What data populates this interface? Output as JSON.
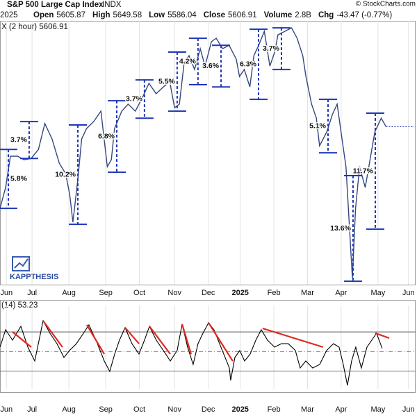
{
  "header": {
    "title": "S&P 500 Large Cap Index",
    "symbol": "INDX",
    "date": "2025",
    "credit": "© StockCharts.com",
    "stats": [
      {
        "label": "Open",
        "value": "5605.87"
      },
      {
        "label": "High",
        "value": "5649.58"
      },
      {
        "label": "Low",
        "value": "5586.04"
      },
      {
        "label": "Close",
        "value": "5606.91"
      },
      {
        "label": "Volume",
        "value": "2.8B"
      },
      {
        "label": "Chg",
        "value": "-43.47 (-0.77%)"
      }
    ],
    "watermark": "KAPPTHESIS"
  },
  "chart_data": [
    {
      "type": "line",
      "xlim": [
        0,
        256
      ],
      "ylim": [
        4818,
        6135
      ],
      "xticks": [
        {
          "value": 4,
          "label": "Jun"
        },
        {
          "value": 20,
          "label": "Jul"
        },
        {
          "value": 43,
          "label": "Aug"
        },
        {
          "value": 66,
          "label": "Sep"
        },
        {
          "value": 87,
          "label": "Oct"
        },
        {
          "value": 109,
          "label": "Nov"
        },
        {
          "value": 130,
          "label": "Dec"
        },
        {
          "value": 150,
          "label": "2025"
        },
        {
          "value": 171,
          "label": "Feb"
        },
        {
          "value": 192,
          "label": "Mar"
        },
        {
          "value": 213,
          "label": "Apr"
        },
        {
          "value": 236,
          "label": "May"
        },
        {
          "value": 255,
          "label": "Jun"
        }
      ],
      "grid": true,
      "series": [
        {
          "name": "X (2 hour) 5606.91",
          "color": "#34467e",
          "x": [
            0,
            3.5,
            6.5,
            11,
            15,
            19.5,
            24,
            28,
            32.5,
            37,
            41,
            43.5,
            45.5,
            48.5,
            51,
            54,
            58.5,
            63,
            67,
            69.5,
            71.5,
            76,
            80,
            84.5,
            89,
            93,
            97.5,
            102,
            106,
            109,
            112,
            115,
            118,
            121.5,
            125,
            128,
            132,
            135,
            139,
            143,
            147.5,
            149.5,
            152.5,
            156,
            158.5,
            161.5,
            165,
            168.5,
            171.5,
            173.5,
            178,
            182,
            185.5,
            189,
            191,
            194.5,
            197.5,
            199.5,
            204,
            207.5,
            210.5,
            213.5,
            216,
            218,
            220,
            222,
            224.5,
            228,
            231,
            234,
            238,
            241
          ],
          "values": [
            5199,
            5303,
            5459,
            5459,
            5441,
            5448,
            5493,
            5622,
            5545,
            5424,
            5372,
            5268,
            5130,
            5337,
            5545,
            5597,
            5632,
            5684,
            5407,
            5441,
            5597,
            5684,
            5719,
            5684,
            5753,
            5823,
            5771,
            5805,
            5830,
            5701,
            5719,
            5927,
            5961,
            5892,
            5996,
            5909,
            6031,
            6048,
            5996,
            6013,
            5944,
            5857,
            5892,
            5805,
            5961,
            6013,
            6083,
            5909,
            5979,
            6065,
            6083,
            6100,
            6048,
            5961,
            5857,
            5719,
            5649,
            5511,
            5580,
            5667,
            5719,
            5545,
            5407,
            5130,
            4852,
            5199,
            5407,
            5303,
            5441,
            5580,
            5649,
            5607
          ]
        }
      ],
      "annotations": [
        {
          "label": "5.8%",
          "x": 5.2,
          "high": 5493,
          "low": 5199
        },
        {
          "label": "3.7%",
          "x": 18.2,
          "high": 5632,
          "low": 5448
        },
        {
          "label": "10.2%",
          "x": 48.6,
          "high": 5615,
          "low": 5119
        },
        {
          "label": "6.8%",
          "x": 72.9,
          "high": 5736,
          "low": 5379
        },
        {
          "label": "3.7%",
          "x": 90.2,
          "high": 5840,
          "low": 5649
        },
        {
          "label": "5.5%",
          "x": 110.6,
          "high": 5979,
          "low": 5684
        },
        {
          "label": "4.2%",
          "x": 123.6,
          "high": 6048,
          "low": 5816
        },
        {
          "label": "3.6%",
          "x": 138,
          "high": 6013,
          "low": 5805
        },
        {
          "label": "6.3%",
          "x": 161.4,
          "high": 6093,
          "low": 5743
        },
        {
          "label": "3.7%",
          "x": 175.7,
          "high": 6100,
          "low": 5892
        },
        {
          "label": "5.1%",
          "x": 204.8,
          "high": 5743,
          "low": 5476
        },
        {
          "label": "13.6%",
          "x": 220.4,
          "high": 5362,
          "low": 4835
        },
        {
          "label": "11.7%",
          "x": 234.3,
          "high": 5674,
          "low": 5095
        }
      ],
      "annotation_color": "#1f35b8"
    },
    {
      "type": "line",
      "title": "(14) 53.23",
      "xlim": [
        0,
        256
      ],
      "ylim": [
        12,
        97
      ],
      "yticks": [
        30,
        50,
        70
      ],
      "grid": true,
      "xticks": [
        {
          "value": 4,
          "label": "Jun"
        },
        {
          "value": 20,
          "label": "Jul"
        },
        {
          "value": 43,
          "label": "Aug"
        },
        {
          "value": 66,
          "label": "Sep"
        },
        {
          "value": 87,
          "label": "Oct"
        },
        {
          "value": 109,
          "label": "Nov"
        },
        {
          "value": 130,
          "label": "Dec"
        },
        {
          "value": 150,
          "label": "2025"
        },
        {
          "value": 171,
          "label": "Feb"
        },
        {
          "value": 192,
          "label": "Mar"
        },
        {
          "value": 213,
          "label": "Apr"
        },
        {
          "value": 236,
          "label": "May"
        },
        {
          "value": 255,
          "label": "Jun"
        }
      ],
      "series": [
        {
          "color": "#000000",
          "x": [
            0,
            3.5,
            7.8,
            13,
            17.4,
            21.7,
            26.9,
            31.2,
            35.6,
            39.9,
            43.4,
            47.7,
            52.1,
            55.5,
            59.9,
            65.1,
            68.5,
            71.6,
            74.6,
            78.1,
            82.4,
            86.8,
            90.2,
            93.3,
            97.6,
            102,
            106.3,
            110.6,
            113.7,
            117.1,
            120.6,
            123.6,
            126.7,
            130.2,
            133.6,
            138.8,
            143.2,
            144,
            146.6,
            149.7,
            152.7,
            156.2,
            159.7,
            163.1,
            167,
            171.4,
            175.7,
            180,
            184.4,
            187.4,
            190.9,
            195.2,
            199.6,
            203.9,
            208.2,
            211.7,
            214.3,
            216.9,
            219.5,
            222.1,
            225.6,
            229.1,
            232.1,
            235.1,
            238.6
          ],
          "values": [
            54.5,
            72.2,
            61.6,
            75.7,
            54.5,
            40.3,
            81.4,
            68.7,
            58,
            43.9,
            51,
            58,
            68.7,
            77.2,
            61.6,
            40.3,
            29.7,
            47.4,
            61.6,
            74.3,
            58,
            47.4,
            61.6,
            75.7,
            61.6,
            51,
            40.3,
            51,
            77.9,
            54.5,
            36.8,
            58,
            68.7,
            79.3,
            72.2,
            51,
            33.2,
            20.5,
            43.9,
            51,
            40.3,
            47.4,
            61.6,
            72.2,
            61.6,
            54.5,
            58,
            58,
            51,
            33.2,
            40.3,
            33.2,
            36.8,
            51,
            58,
            54.5,
            36.8,
            15.5,
            40.3,
            54.5,
            33.2,
            54.5,
            61.6,
            68.7,
            53.2
          ]
        }
      ],
      "trendline_color": "#e0281e",
      "trendlines": [
        {
          "x": [
            7.8,
            19.5
          ],
          "values": [
            70.1,
            54.5
          ]
        },
        {
          "x": [
            26.9,
            39
          ],
          "values": [
            81.4,
            54.5
          ]
        },
        {
          "x": [
            54.2,
            65.1
          ],
          "values": [
            77.2,
            47.4
          ]
        },
        {
          "x": [
            78.1,
            86.8
          ],
          "values": [
            74.3,
            58
          ]
        },
        {
          "x": [
            93.3,
            106.3
          ],
          "values": [
            75.7,
            47.4
          ]
        },
        {
          "x": [
            113.7,
            119.3
          ],
          "values": [
            77.9,
            47.4
          ]
        },
        {
          "x": [
            130.2,
            145.3
          ],
          "values": [
            79.3,
            40.3
          ]
        },
        {
          "x": [
            164,
            201.7
          ],
          "values": [
            73.6,
            54.5
          ]
        },
        {
          "x": [
            234.3,
            243
          ],
          "values": [
            68.7,
            63.7
          ]
        }
      ]
    }
  ]
}
